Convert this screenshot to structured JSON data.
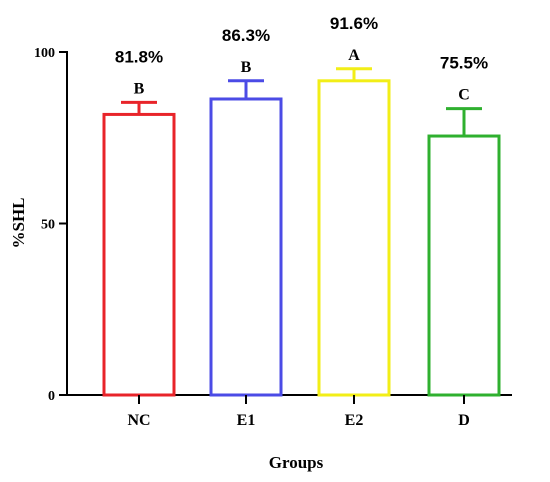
{
  "chart_data": {
    "type": "bar",
    "categories": [
      "NC",
      "E1",
      "E2",
      "D"
    ],
    "values": [
      81.8,
      86.3,
      91.6,
      75.5
    ],
    "errors": [
      3.5,
      5.3,
      3.5,
      8.0
    ],
    "percent_labels": [
      "81.8%",
      "86.3%",
      "91.6%",
      "75.5%"
    ],
    "significance_letters": [
      "B",
      "B",
      "A",
      "C"
    ],
    "colors": [
      "#e8242a",
      "#4b4be6",
      "#f2ee17",
      "#2fb02f"
    ],
    "ylim": [
      0,
      100
    ],
    "yticks": [
      "0",
      "50",
      "100"
    ],
    "xlabel": "Groups",
    "ylabel": "%SHL",
    "grid": false
  }
}
